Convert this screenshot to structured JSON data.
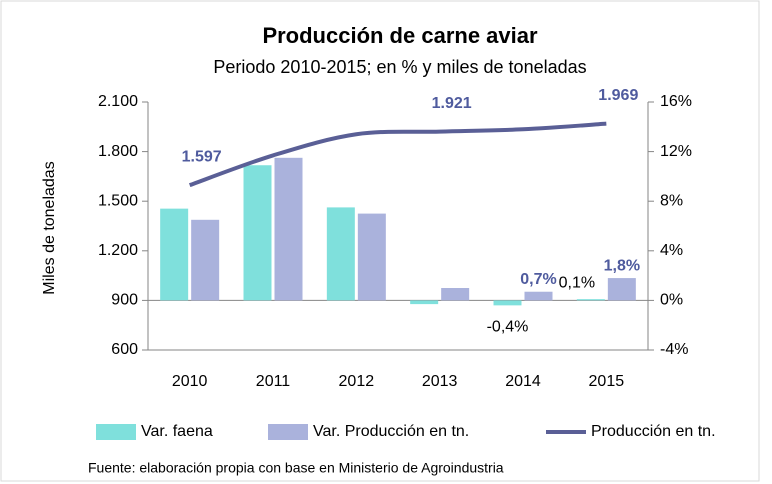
{
  "chart_data": {
    "type": "combo",
    "title": "Producción de carne aviar",
    "subtitle": "Periodo 2010-2015;  en % y miles de toneladas",
    "y_label": "Miles de toneladas",
    "source": "Fuente: elaboración propia con base en Ministerio de Agroindustria",
    "categories": [
      "2010",
      "2011",
      "2012",
      "2013",
      "2014",
      "2015"
    ],
    "ylim": [
      600,
      2100
    ],
    "yticks": [
      600,
      900,
      {
        "value": 1200,
        "label": "1.200"
      },
      {
        "value": 1500,
        "label": "1.500"
      },
      {
        "value": 1800,
        "label": "1.800"
      },
      {
        "value": 2100,
        "label": "2.100"
      }
    ],
    "y2lim": [
      -4,
      16
    ],
    "y2ticks": [
      {
        "value": -4,
        "label": "-4%"
      },
      {
        "value": 0,
        "label": "0%"
      },
      {
        "value": 4,
        "label": "4%"
      },
      {
        "value": 8,
        "label": "8%"
      },
      {
        "value": 12,
        "label": "12%"
      },
      {
        "value": 16,
        "label": "16%"
      }
    ],
    "legend": "bottom",
    "series": [
      {
        "name": "Var. faena",
        "type": "bar",
        "axis": "y2",
        "color": "#7fe0dc",
        "label_color": "#000000",
        "values": [
          7.4,
          10.9,
          7.5,
          -0.3,
          -0.4,
          0.1
        ],
        "value_labels": [
          null,
          null,
          null,
          null,
          "-0,4%",
          "0,1%"
        ]
      },
      {
        "name": "Var. Producción en tn.",
        "type": "bar",
        "axis": "y2",
        "color": "#aab2dc",
        "label_color": "#4f5b9e",
        "values": [
          6.5,
          11.5,
          7.0,
          1.0,
          0.7,
          1.8
        ],
        "value_labels": [
          null,
          null,
          null,
          null,
          "0,7%",
          "1,8%"
        ]
      },
      {
        "name": "Producción en tn.",
        "type": "line",
        "axis": "y",
        "color": "#5a5f96",
        "label_color": "#4f5b9e",
        "values": [
          1597,
          1777,
          1905,
          1921,
          1935,
          1969
        ],
        "value_labels": [
          "1.597",
          null,
          null,
          "1.921",
          null,
          "1.969"
        ]
      }
    ]
  }
}
